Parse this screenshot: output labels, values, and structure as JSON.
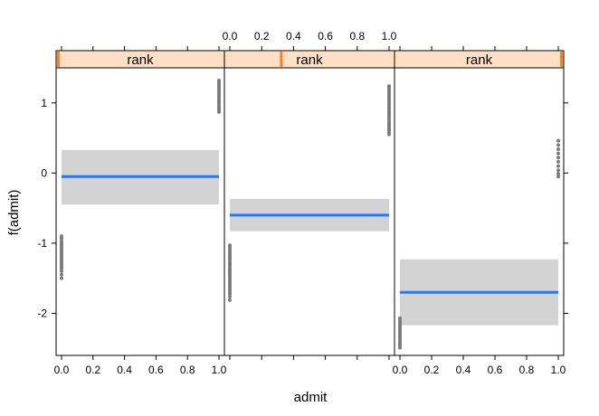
{
  "chart_data": {
    "type": "scatter",
    "xlabel": "admit",
    "ylabel": "f(admit)",
    "xlim": [
      0,
      1
    ],
    "ylim": [
      -2.6,
      1.5
    ],
    "x_ticks": [
      "0.0",
      "0.2",
      "0.4",
      "0.6",
      "0.8",
      "1.0"
    ],
    "y_ticks": [
      "-2",
      "-1",
      "0",
      "1"
    ],
    "panel_order": [
      "left",
      "middle",
      "right"
    ],
    "panels": [
      {
        "strip_label": "rank",
        "strip_marker": 0.0,
        "fit": -0.05,
        "band": [
          -0.45,
          0.33
        ],
        "points_at_0": [
          -0.9,
          -0.93,
          -0.97,
          -1.0,
          -1.03,
          -1.06,
          -1.09,
          -1.12,
          -1.15,
          -1.18,
          -1.21,
          -1.24,
          -1.27,
          -1.3,
          -1.33,
          -1.36,
          -1.4,
          -1.45,
          -1.5
        ],
        "points_at_1": [
          0.87,
          0.9,
          0.93,
          0.96,
          0.99,
          1.02,
          1.05,
          1.08,
          1.11,
          1.14,
          1.17,
          1.2,
          1.23,
          1.26,
          1.29,
          1.32
        ]
      },
      {
        "strip_label": "rank",
        "strip_marker": 0.33,
        "fit": -0.6,
        "band": [
          -0.83,
          -0.37
        ],
        "points_at_0": [
          -1.03,
          -1.06,
          -1.09,
          -1.12,
          -1.15,
          -1.18,
          -1.21,
          -1.24,
          -1.27,
          -1.3,
          -1.33,
          -1.36,
          -1.39,
          -1.42,
          -1.45,
          -1.48,
          -1.51,
          -1.54,
          -1.57,
          -1.6,
          -1.63,
          -1.66,
          -1.69,
          -1.72,
          -1.76,
          -1.81
        ],
        "points_at_1": [
          0.55,
          0.58,
          0.61,
          0.64,
          0.67,
          0.7,
          0.73,
          0.76,
          0.79,
          0.82,
          0.85,
          0.88,
          0.91,
          0.94,
          0.97,
          1.0,
          1.03,
          1.06,
          1.09,
          1.12,
          1.15,
          1.18,
          1.21,
          1.24
        ]
      },
      {
        "strip_label": "rank",
        "strip_marker": 1.0,
        "fit": -1.7,
        "band": [
          -2.17,
          -1.23
        ],
        "points_at_0": [
          -2.07,
          -2.1,
          -2.13,
          -2.16,
          -2.19,
          -2.22,
          -2.25,
          -2.28,
          -2.31,
          -2.34,
          -2.37,
          -2.4,
          -2.43,
          -2.46,
          -2.49
        ],
        "points_at_1": [
          -0.05,
          -0.01,
          0.04,
          0.1,
          0.16,
          0.22,
          0.28,
          0.34,
          0.4,
          0.46
        ]
      }
    ],
    "colors": {
      "points": "#7a7a7a",
      "fit_line": "#1f78ff",
      "band": "#d3d3d3",
      "strip_bg": "#ffe0c4",
      "strip_marker": "#ff7f27"
    }
  }
}
